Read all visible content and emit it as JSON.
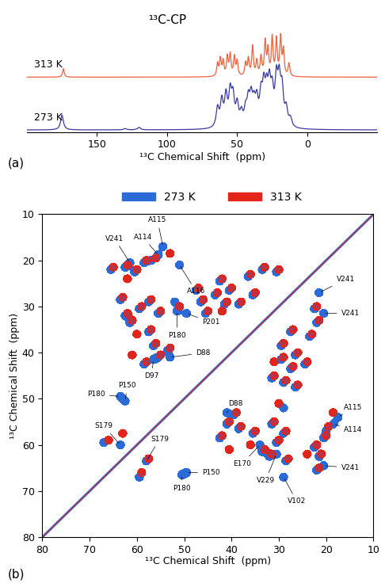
{
  "chart_data": [
    {
      "type": "line",
      "title": "¹³C-CP",
      "x_label": "¹³C Chemical Shift  (ppm)",
      "panel_label": "(a)",
      "xlim": [
        200,
        -50
      ],
      "xticks": [
        150,
        100,
        50,
        0
      ],
      "tick_labels": "x",
      "series": [
        {
          "name": "313 K",
          "color": "#f0603c",
          "peak_shifts": [
            174,
            64,
            62,
            60,
            57,
            55,
            52,
            50,
            44,
            42,
            39,
            36,
            33,
            30,
            28,
            25,
            22,
            19,
            17,
            13
          ],
          "peak_heights": [
            0.2,
            0.3,
            0.4,
            0.35,
            0.45,
            0.5,
            0.45,
            0.35,
            0.3,
            0.4,
            0.7,
            0.35,
            0.45,
            0.8,
            0.6,
            0.9,
            0.85,
            0.9,
            0.6,
            0.3
          ]
        },
        {
          "name": "273 K",
          "color": "#3a3aa0",
          "peak_shifts": [
            175,
            130,
            120,
            64,
            61,
            58,
            55,
            53,
            50,
            47,
            44,
            42,
            40,
            38,
            36,
            33,
            31,
            29,
            27,
            25,
            22,
            20,
            18,
            15,
            12
          ],
          "peak_heights": [
            0.35,
            0.03,
            0.06,
            0.45,
            0.6,
            0.7,
            0.75,
            0.65,
            0.5,
            0.3,
            0.35,
            0.55,
            0.6,
            0.45,
            0.55,
            0.65,
            0.8,
            0.7,
            0.85,
            0.7,
            1.0,
            0.95,
            0.8,
            0.4,
            0.2
          ]
        }
      ]
    },
    {
      "type": "contour",
      "x_label": "¹³C Chemical Shift  (ppm)",
      "y_label": "¹³C Chemical Shift  (ppm)",
      "panel_label": "(b)",
      "xlim": [
        80,
        10
      ],
      "ylim": [
        80,
        10
      ],
      "xticks": [
        80,
        70,
        60,
        50,
        40,
        30,
        20,
        10
      ],
      "yticks": [
        10,
        20,
        30,
        40,
        50,
        60,
        70,
        80
      ],
      "legend": "upper center",
      "series": [
        {
          "name": "273 K",
          "color": "#2a6bd8",
          "peaks": [
            [
              62.5,
              21.5
            ],
            [
              21.5,
              62.5
            ],
            [
              60.5,
              22.5
            ],
            [
              22.5,
              60.5
            ],
            [
              58.5,
              20.5
            ],
            [
              20.5,
              58.5
            ],
            [
              57,
              20
            ],
            [
              20,
              57
            ],
            [
              59.5,
              30.5
            ],
            [
              30.5,
              59.5
            ],
            [
              57.5,
              29
            ],
            [
              29,
              57.5
            ],
            [
              55.5,
              31.5
            ],
            [
              31.5,
              55.5
            ],
            [
              61.5,
              33.5
            ],
            [
              33.5,
              61.5
            ],
            [
              57.5,
              35.5
            ],
            [
              35.5,
              57.5
            ],
            [
              56.5,
              38.5
            ],
            [
              38.5,
              56.5
            ],
            [
              58.5,
              42.5
            ],
            [
              42.5,
              58.5
            ],
            [
              55.5,
              41
            ],
            [
              41,
              55.5
            ],
            [
              53.5,
              39.5
            ],
            [
              39.5,
              53.5
            ],
            [
              63.5,
              28.5
            ],
            [
              28.5,
              63.5
            ],
            [
              65.5,
              22
            ],
            [
              22,
              65.5
            ],
            [
              52,
              29
            ],
            [
              29,
              52
            ],
            [
              47.5,
              26.5
            ],
            [
              26.5,
              47.5
            ],
            [
              46.5,
              29
            ],
            [
              29,
              46.5
            ],
            [
              43.5,
              27.5
            ],
            [
              27.5,
              43.5
            ],
            [
              42.5,
              24.5
            ],
            [
              24.5,
              42.5
            ],
            [
              41.5,
              29.5
            ],
            [
              29.5,
              41.5
            ],
            [
              36.5,
              23.5
            ],
            [
              23.5,
              36.5
            ],
            [
              35.5,
              27.5
            ],
            [
              27.5,
              35.5
            ],
            [
              33.5,
              22
            ],
            [
              22,
              33.5
            ],
            [
              40.5,
              26.5
            ],
            [
              26.5,
              40.5
            ],
            [
              62.5,
              32
            ],
            [
              32,
              62.5
            ],
            [
              67,
              59.5
            ],
            [
              59.5,
              67
            ],
            [
              45.5,
              31.5
            ],
            [
              31.5,
              45.5
            ],
            [
              38.5,
              29.5
            ],
            [
              29.5,
              38.5
            ],
            [
              30.5,
              22.5
            ],
            [
              22.5,
              30.5
            ],
            [
              61.5,
              20.5
            ],
            [
              54.5,
              17
            ],
            [
              55.5,
              18.8
            ],
            [
              51,
              21
            ],
            [
              49.5,
              31.5
            ],
            [
              51.5,
              31
            ],
            [
              53,
              41
            ],
            [
              56.5,
              41.5
            ],
            [
              63.5,
              49.5
            ],
            [
              62.5,
              50.5
            ],
            [
              63.5,
              60
            ],
            [
              58,
              63.5
            ],
            [
              41,
              53
            ],
            [
              34,
              60
            ],
            [
              30.5,
              62
            ],
            [
              29,
              67
            ],
            [
              21.5,
              27
            ],
            [
              20.5,
              31.5
            ],
            [
              20.5,
              64.5
            ],
            [
              17.5,
              54
            ],
            [
              18.5,
              55.5
            ],
            [
              49.5,
              66
            ],
            [
              50.5,
              66.5
            ]
          ]
        },
        {
          "name": "313 K",
          "color": "#e3241b",
          "peaks": [
            [
              62,
              21
            ],
            [
              21,
              62
            ],
            [
              60,
              22
            ],
            [
              22,
              60
            ],
            [
              58,
              20
            ],
            [
              20,
              58
            ],
            [
              56,
              19.5
            ],
            [
              19.5,
              56
            ],
            [
              53,
              18.5
            ],
            [
              18.5,
              53
            ],
            [
              59,
              30
            ],
            [
              30,
              59
            ],
            [
              57,
              28.5
            ],
            [
              28.5,
              57
            ],
            [
              55,
              31
            ],
            [
              31,
              55
            ],
            [
              61,
              33
            ],
            [
              33,
              61
            ],
            [
              57,
              35
            ],
            [
              35,
              57
            ],
            [
              56,
              38
            ],
            [
              38,
              56
            ],
            [
              58,
              42
            ],
            [
              42,
              58
            ],
            [
              55,
              40.5
            ],
            [
              40.5,
              55
            ],
            [
              53,
              39
            ],
            [
              39,
              53
            ],
            [
              63,
              28
            ],
            [
              28,
              63
            ],
            [
              65,
              21.5
            ],
            [
              21.5,
              65
            ],
            [
              62,
              24
            ],
            [
              24,
              62
            ],
            [
              51,
              30
            ],
            [
              30,
              51
            ],
            [
              47,
              26
            ],
            [
              26,
              47
            ],
            [
              46,
              28.5
            ],
            [
              28.5,
              46
            ],
            [
              43,
              27
            ],
            [
              27,
              43
            ],
            [
              42,
              24
            ],
            [
              24,
              42
            ],
            [
              41,
              29
            ],
            [
              29,
              41
            ],
            [
              36,
              23
            ],
            [
              23,
              36
            ],
            [
              35,
              27
            ],
            [
              27,
              35
            ],
            [
              33,
              21.5
            ],
            [
              21.5,
              33
            ],
            [
              40,
              26
            ],
            [
              26,
              40
            ],
            [
              62,
              31.5
            ],
            [
              31.5,
              62
            ],
            [
              61,
              40.5
            ],
            [
              40.5,
              61
            ],
            [
              66,
              59
            ],
            [
              59,
              66
            ],
            [
              63,
              57.5
            ],
            [
              57.5,
              63
            ],
            [
              45,
              31
            ],
            [
              31,
              45
            ],
            [
              38,
              29
            ],
            [
              29,
              38
            ],
            [
              30,
              22
            ],
            [
              22,
              30
            ],
            [
              42,
              31
            ],
            [
              31,
              42
            ],
            [
              60,
              36
            ],
            [
              36,
              60
            ]
          ]
        }
      ],
      "annotations": [
        {
          "text": "V241",
          "x": 61.5,
          "y": 20.5
        },
        {
          "text": "A115",
          "x": 54.5,
          "y": 17
        },
        {
          "text": "A114",
          "x": 55.5,
          "y": 18.8
        },
        {
          "text": "A116",
          "x": 51,
          "y": 21
        },
        {
          "text": "P201",
          "x": 49.5,
          "y": 31.5
        },
        {
          "text": "P180",
          "x": 51.5,
          "y": 31
        },
        {
          "text": "D88",
          "x": 53,
          "y": 41
        },
        {
          "text": "D97",
          "x": 56.5,
          "y": 41.5
        },
        {
          "text": "P180",
          "x": 63.5,
          "y": 49.5
        },
        {
          "text": "P150",
          "x": 62.5,
          "y": 50.5
        },
        {
          "text": "S179",
          "x": 63.5,
          "y": 60
        },
        {
          "text": "S179",
          "x": 58,
          "y": 63.5
        },
        {
          "text": "D88",
          "x": 41,
          "y": 53
        },
        {
          "text": "E170",
          "x": 34,
          "y": 60
        },
        {
          "text": "V229",
          "x": 30.5,
          "y": 62
        },
        {
          "text": "V102",
          "x": 29,
          "y": 67
        },
        {
          "text": "V241",
          "x": 21.5,
          "y": 27
        },
        {
          "text": "V241",
          "x": 20.5,
          "y": 31.5
        },
        {
          "text": "V241",
          "x": 20.5,
          "y": 64.5
        },
        {
          "text": "A115",
          "x": 17.5,
          "y": 54
        },
        {
          "text": "A114",
          "x": 18.5,
          "y": 55.5
        },
        {
          "text": "P150",
          "x": 49.5,
          "y": 66
        },
        {
          "text": "P180",
          "x": 50.5,
          "y": 66.5
        }
      ]
    }
  ]
}
